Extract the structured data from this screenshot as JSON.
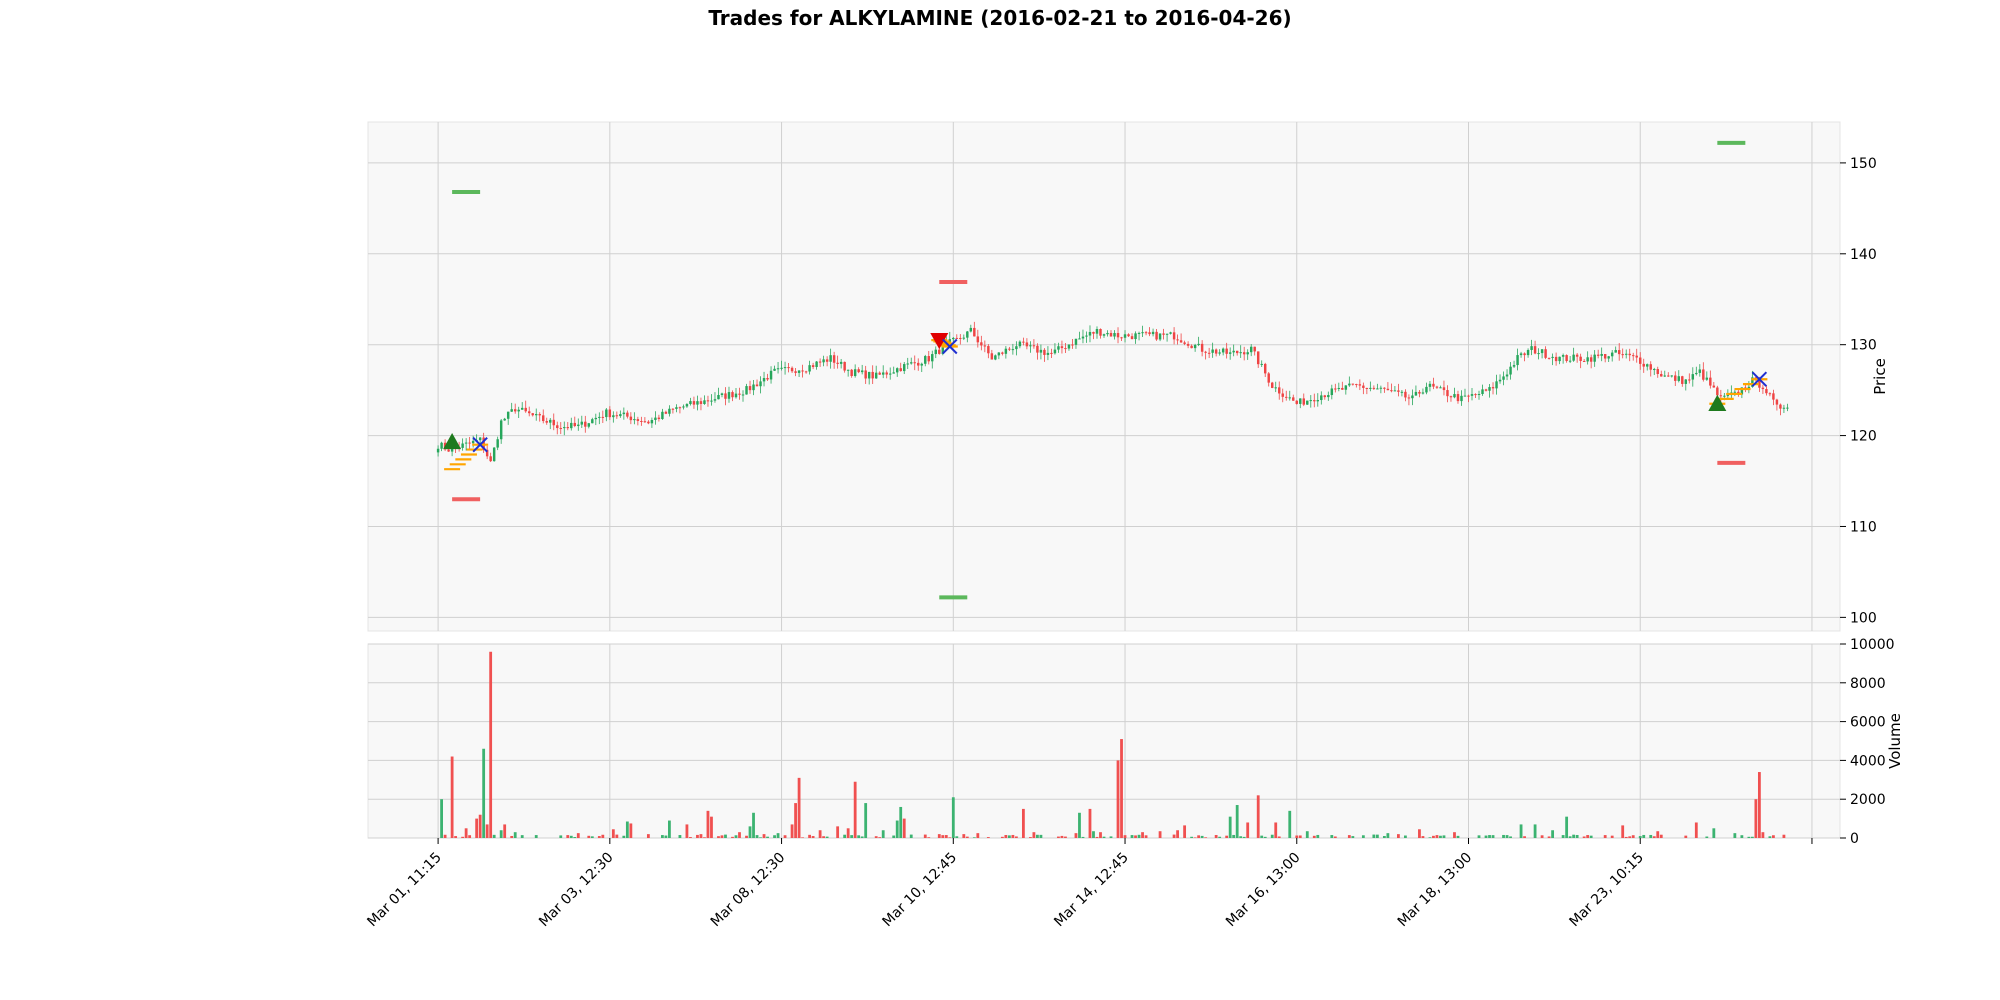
{
  "chart_data": {
    "type": "candlestick",
    "title": "Trades for ALKYLAMINE (2016-02-21 to 2016-04-26)",
    "price_panel": {
      "ylabel": "Price",
      "ylim": [
        98.5,
        154.5
      ],
      "yticks": [
        100,
        110,
        120,
        130,
        140,
        150
      ],
      "grid": true
    },
    "volume_panel": {
      "ylabel": "Volume",
      "ylim": [
        0,
        10000
      ],
      "yticks": [
        0,
        2000,
        4000,
        6000,
        8000,
        10000
      ],
      "tick_labels": [
        "0",
        "2000",
        "4000",
        "6000",
        "8000",
        "10000"
      ],
      "grid": true
    },
    "x_range": [
      -20,
      400
    ],
    "x_ticks": [
      {
        "i": 0,
        "label": "Mar 01, 11:15"
      },
      {
        "i": 49,
        "label": "Mar 03, 12:30"
      },
      {
        "i": 98,
        "label": "Mar 08, 12:30"
      },
      {
        "i": 147,
        "label": "Mar 10, 12:45"
      },
      {
        "i": 196,
        "label": "Mar 14, 12:45"
      },
      {
        "i": 245,
        "label": "Mar 16, 13:00"
      },
      {
        "i": 294,
        "label": "Mar 18, 13:00"
      },
      {
        "i": 343,
        "label": "Mar 23, 10:15"
      },
      {
        "i": 392,
        "label": ""
      }
    ],
    "colors": {
      "up": "#26a65b",
      "down": "#ef4444",
      "volume_up": "#3cb371",
      "volume_down": "#f05050",
      "entry_marker": "#1e7a1e",
      "exit_short_marker": "#e00000",
      "exit_marker": "#1f2fd0",
      "trade_path": "#ffa500",
      "take_profit": "#5cb85c",
      "stop_loss": "#f06060",
      "panel_bg": "#f8f8f8",
      "grid": "#d0d0d0"
    },
    "price_anchors": [
      [
        0,
        119.0
      ],
      [
        3,
        118.5
      ],
      [
        8,
        119.0
      ],
      [
        12,
        119.5
      ],
      [
        15,
        117.0
      ],
      [
        18,
        121.5
      ],
      [
        22,
        123.0
      ],
      [
        28,
        122.0
      ],
      [
        35,
        121.0
      ],
      [
        40,
        121.0
      ],
      [
        48,
        122.5
      ],
      [
        55,
        122.0
      ],
      [
        60,
        121.5
      ],
      [
        68,
        123.0
      ],
      [
        78,
        124.0
      ],
      [
        88,
        125.0
      ],
      [
        96,
        127.0
      ],
      [
        105,
        127.5
      ],
      [
        112,
        128.5
      ],
      [
        118,
        127.0
      ],
      [
        125,
        126.5
      ],
      [
        132,
        127.5
      ],
      [
        140,
        128.5
      ],
      [
        145,
        130.0
      ],
      [
        148,
        130.5
      ],
      [
        152,
        131.5
      ],
      [
        158,
        128.5
      ],
      [
        165,
        130.0
      ],
      [
        175,
        129.0
      ],
      [
        182,
        130.5
      ],
      [
        188,
        131.5
      ],
      [
        194,
        131.0
      ],
      [
        200,
        131.0
      ],
      [
        210,
        131.0
      ],
      [
        218,
        129.5
      ],
      [
        226,
        129.0
      ],
      [
        232,
        129.5
      ],
      [
        238,
        125.5
      ],
      [
        245,
        123.5
      ],
      [
        252,
        124.5
      ],
      [
        262,
        125.5
      ],
      [
        270,
        125.0
      ],
      [
        278,
        124.0
      ],
      [
        282,
        125.5
      ],
      [
        292,
        124.0
      ],
      [
        300,
        125.0
      ],
      [
        305,
        127.0
      ],
      [
        308,
        128.5
      ],
      [
        312,
        129.5
      ],
      [
        320,
        128.5
      ],
      [
        328,
        128.5
      ],
      [
        336,
        129.0
      ],
      [
        342,
        128.5
      ],
      [
        350,
        126.5
      ],
      [
        356,
        126.0
      ],
      [
        360,
        127.0
      ],
      [
        366,
        124.0
      ],
      [
        370,
        124.5
      ],
      [
        375,
        126.0
      ],
      [
        378,
        125.5
      ],
      [
        382,
        123.0
      ],
      [
        385,
        123.5
      ]
    ],
    "volume_spikes": [
      [
        1,
        2000,
        1
      ],
      [
        4,
        4200,
        0
      ],
      [
        8,
        500,
        0
      ],
      [
        11,
        1000,
        0
      ],
      [
        12,
        1200,
        0
      ],
      [
        13,
        4600,
        1
      ],
      [
        14,
        700,
        0
      ],
      [
        15,
        9600,
        0
      ],
      [
        18,
        400,
        1
      ],
      [
        19,
        700,
        0
      ],
      [
        22,
        300,
        1
      ],
      [
        37,
        150,
        0
      ],
      [
        40,
        250,
        0
      ],
      [
        46,
        100,
        0
      ],
      [
        50,
        450,
        0
      ],
      [
        54,
        850,
        1
      ],
      [
        55,
        750,
        0
      ],
      [
        60,
        200,
        0
      ],
      [
        66,
        900,
        1
      ],
      [
        71,
        700,
        0
      ],
      [
        75,
        200,
        0
      ],
      [
        77,
        1400,
        0
      ],
      [
        78,
        1100,
        0
      ],
      [
        86,
        300,
        0
      ],
      [
        89,
        600,
        1
      ],
      [
        90,
        1300,
        1
      ],
      [
        93,
        200,
        0
      ],
      [
        97,
        250,
        1
      ],
      [
        101,
        700,
        0
      ],
      [
        102,
        1800,
        0
      ],
      [
        103,
        3100,
        0
      ],
      [
        109,
        400,
        0
      ],
      [
        114,
        600,
        0
      ],
      [
        117,
        500,
        0
      ],
      [
        119,
        2900,
        0
      ],
      [
        122,
        1800,
        1
      ],
      [
        127,
        400,
        1
      ],
      [
        131,
        900,
        1
      ],
      [
        132,
        1600,
        1
      ],
      [
        133,
        1000,
        0
      ],
      [
        143,
        200,
        0
      ],
      [
        147,
        2100,
        1
      ],
      [
        150,
        200,
        0
      ],
      [
        154,
        250,
        0
      ],
      [
        167,
        1500,
        0
      ],
      [
        170,
        300,
        0
      ],
      [
        182,
        250,
        0
      ],
      [
        183,
        1300,
        1
      ],
      [
        186,
        1500,
        0
      ],
      [
        187,
        350,
        1
      ],
      [
        189,
        300,
        0
      ],
      [
        194,
        4000,
        0
      ],
      [
        195,
        5100,
        0
      ],
      [
        201,
        300,
        0
      ],
      [
        206,
        350,
        0
      ],
      [
        211,
        400,
        0
      ],
      [
        213,
        650,
        0
      ],
      [
        226,
        1100,
        1
      ],
      [
        228,
        1700,
        1
      ],
      [
        231,
        800,
        0
      ],
      [
        234,
        2200,
        0
      ],
      [
        239,
        800,
        0
      ],
      [
        243,
        1400,
        1
      ],
      [
        248,
        350,
        1
      ],
      [
        260,
        150,
        0
      ],
      [
        271,
        250,
        1
      ],
      [
        274,
        200,
        0
      ],
      [
        280,
        450,
        0
      ],
      [
        285,
        150,
        0
      ],
      [
        290,
        300,
        0
      ],
      [
        305,
        150,
        1
      ],
      [
        309,
        700,
        1
      ],
      [
        313,
        700,
        1
      ],
      [
        318,
        400,
        1
      ],
      [
        322,
        1100,
        1
      ],
      [
        333,
        150,
        0
      ],
      [
        338,
        650,
        0
      ],
      [
        348,
        350,
        0
      ],
      [
        359,
        800,
        0
      ],
      [
        364,
        500,
        1
      ],
      [
        370,
        250,
        1
      ],
      [
        376,
        2000,
        0
      ],
      [
        377,
        3400,
        0
      ],
      [
        378,
        300,
        0
      ]
    ],
    "trades": [
      {
        "entry_i": 4,
        "entry_price": 119.3,
        "entry_marker": "triangle-up",
        "exit_i": 12,
        "exit_price": 119.0,
        "take_profit": 146.8,
        "stop_loss": 113.0
      },
      {
        "entry_i": 143,
        "entry_price": 130.5,
        "entry_marker": "triangle-down",
        "exit_i": 146,
        "exit_price": 129.8,
        "take_profit": 102.2,
        "stop_loss": 136.9
      },
      {
        "entry_i": 365,
        "entry_price": 123.5,
        "entry_marker": "triangle-up",
        "exit_i": 377,
        "exit_price": 126.2,
        "take_profit": 152.2,
        "stop_loss": 117.0
      }
    ]
  }
}
